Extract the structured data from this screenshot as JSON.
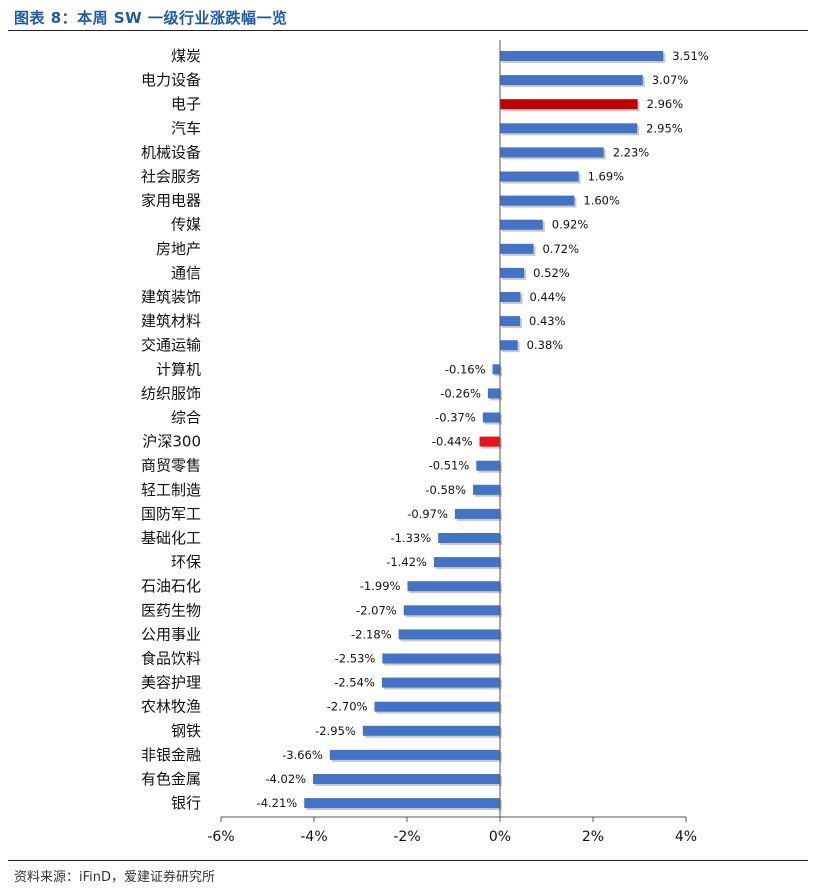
{
  "header": {
    "title": "图表 8：本周 SW 一级行业涨跌幅一览"
  },
  "footer": {
    "source": "资料来源：iFinD，爱建证券研究所"
  },
  "colors": {
    "default_bar": "#4472c4",
    "highlight_bar": "#c00000",
    "index_bar": "#e8141b",
    "title": "#1f5aa6"
  },
  "chart_data": {
    "type": "bar",
    "orientation": "horizontal",
    "title": "",
    "xlabel": "",
    "ylabel": "",
    "xlim": [
      -6,
      4
    ],
    "x_ticks": [
      "-6%",
      "-4%",
      "-2%",
      "0%",
      "2%",
      "4%"
    ],
    "grid": false,
    "unit": "%",
    "categories": [
      "煤炭",
      "电力设备",
      "电子",
      "汽车",
      "机械设备",
      "社会服务",
      "家用电器",
      "传媒",
      "房地产",
      "通信",
      "建筑装饰",
      "建筑材料",
      "交通运输",
      "计算机",
      "纺织服饰",
      "综合",
      "沪深300",
      "商贸零售",
      "轻工制造",
      "国防军工",
      "基础化工",
      "环保",
      "石油石化",
      "医药生物",
      "公用事业",
      "食品饮料",
      "美容护理",
      "农林牧渔",
      "钢铁",
      "非银金融",
      "有色金属",
      "银行"
    ],
    "values": [
      3.51,
      3.07,
      2.96,
      2.95,
      2.23,
      1.69,
      1.6,
      0.92,
      0.72,
      0.52,
      0.44,
      0.43,
      0.38,
      -0.16,
      -0.26,
      -0.37,
      -0.44,
      -0.51,
      -0.58,
      -0.97,
      -1.33,
      -1.42,
      -1.99,
      -2.07,
      -2.18,
      -2.53,
      -2.54,
      -2.7,
      -2.95,
      -3.66,
      -4.02,
      -4.21
    ],
    "value_labels": [
      "3.51%",
      "3.07%",
      "2.96%",
      "2.95%",
      "2.23%",
      "1.69%",
      "1.60%",
      "0.92%",
      "0.72%",
      "0.52%",
      "0.44%",
      "0.43%",
      "0.38%",
      "-0.16%",
      "-0.26%",
      "-0.37%",
      "-0.44%",
      "-0.51%",
      "-0.58%",
      "-0.97%",
      "-1.33%",
      "-1.42%",
      "-1.99%",
      "-2.07%",
      "-2.18%",
      "-2.53%",
      "-2.54%",
      "-2.70%",
      "-2.95%",
      "-3.66%",
      "-4.02%",
      "-4.21%"
    ],
    "highlight": {
      "电子": "#c00000",
      "沪深300": "#e8141b"
    }
  }
}
